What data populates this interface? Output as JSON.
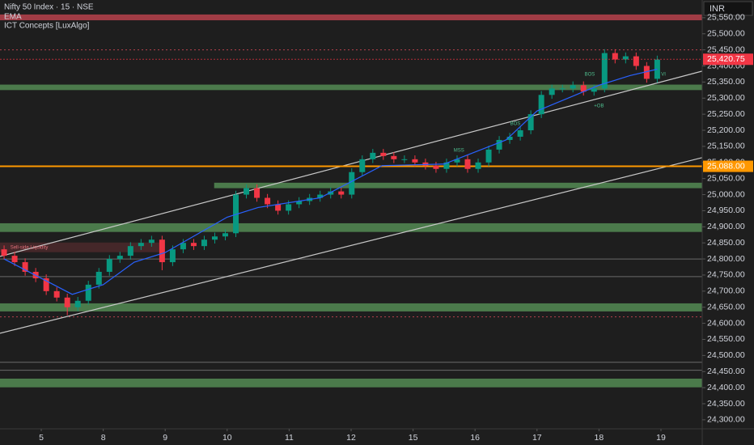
{
  "chart_data": {
    "type": "candlestick",
    "title": "Nifty 50 Index · 15 · NSE",
    "indicators": [
      "EMA",
      "ICT Concepts [LuxAlgo]"
    ],
    "currency": "INR",
    "up_color": "#089981",
    "down_color": "#f23645",
    "x": [
      -0.6,
      -0.43,
      -0.26,
      -0.09,
      0.08,
      0.25,
      0.42,
      0.59,
      0.76,
      0.93,
      1.1,
      1.27,
      1.44,
      1.61,
      1.78,
      1.95,
      2.12,
      2.29,
      2.46,
      2.63,
      2.8,
      2.97,
      3.14,
      3.31,
      3.48,
      3.65,
      3.82,
      3.99,
      4.16,
      4.33,
      4.5,
      4.67,
      4.84,
      5.01,
      5.18,
      5.35,
      5.52,
      5.69,
      5.86,
      6.03,
      6.2,
      6.37,
      6.54,
      6.71,
      6.88,
      7.05,
      7.22,
      7.39,
      7.56,
      7.73,
      7.9,
      8.07,
      8.24,
      8.41,
      8.58,
      8.75,
      8.92,
      9.09,
      9.26,
      9.43,
      9.6,
      9.77,
      9.94
    ],
    "open": [
      24830,
      24810,
      24790,
      24760,
      24740,
      24700,
      24680,
      24650,
      24670,
      24720,
      24760,
      24800,
      24810,
      24840,
      24850,
      24860,
      24790,
      24830,
      24850,
      24840,
      24860,
      24870,
      24880,
      25000,
      25020,
      24990,
      24970,
      24950,
      24970,
      24980,
      24990,
      25000,
      25010,
      25000,
      25070,
      25110,
      25130,
      25120,
      25110,
      25110,
      25100,
      25090,
      25080,
      25100,
      25110,
      25080,
      25100,
      25140,
      25170,
      25180,
      25200,
      25250,
      25310,
      25330,
      25330,
      25340,
      25320,
      25330,
      25440,
      25420,
      25430,
      25400,
      25360
    ],
    "high": [
      24842,
      24822,
      24802,
      24772,
      24752,
      24712,
      24692,
      24682,
      24732,
      24772,
      24812,
      24822,
      24852,
      24862,
      24872,
      24872,
      24842,
      24862,
      24862,
      24872,
      24882,
      24892,
      25012,
      25032,
      25032,
      25002,
      24982,
      24982,
      24992,
      25002,
      25012,
      25022,
      25022,
      25082,
      25122,
      25142,
      25142,
      25132,
      25122,
      25122,
      25112,
      25102,
      25112,
      25122,
      25122,
      25112,
      25152,
      25182,
      25192,
      25212,
      25262,
      25322,
      25342,
      25342,
      25352,
      25352,
      25342,
      25452,
      25452,
      25442,
      25442,
      25412,
      25432
    ],
    "low": [
      24798,
      24778,
      24748,
      24728,
      24688,
      24668,
      24625,
      24638,
      24658,
      24708,
      24748,
      24788,
      24798,
      24828,
      24838,
      24765,
      24778,
      24818,
      24828,
      24828,
      24848,
      24858,
      24868,
      24988,
      24978,
      24958,
      24938,
      24938,
      24958,
      24968,
      24978,
      24988,
      24988,
      24988,
      25058,
      25098,
      25108,
      25098,
      25098,
      25088,
      25078,
      25068,
      25068,
      25088,
      25068,
      25068,
      25088,
      25128,
      25158,
      25168,
      25188,
      25238,
      25298,
      25318,
      25318,
      25308,
      25308,
      25318,
      25408,
      25408,
      25388,
      25348,
      25348
    ],
    "close": [
      24810,
      24790,
      24760,
      24740,
      24700,
      24680,
      24650,
      24670,
      24720,
      24760,
      24800,
      24810,
      24840,
      24850,
      24860,
      24790,
      24830,
      24850,
      24840,
      24860,
      24870,
      24880,
      25000,
      25020,
      24990,
      24970,
      24950,
      24970,
      24980,
      24990,
      25000,
      25010,
      25000,
      25070,
      25110,
      25130,
      25120,
      25110,
      25110,
      25100,
      25090,
      25080,
      25100,
      25110,
      25080,
      25100,
      25140,
      25170,
      25180,
      25200,
      25250,
      25310,
      25330,
      25330,
      25340,
      25320,
      25330,
      25440,
      25420,
      25430,
      25400,
      25360,
      25420
    ],
    "ema": {
      "color": "#2962ff",
      "x": [
        -0.6,
        0.5,
        1.0,
        1.5,
        2.0,
        3.0,
        3.5,
        4.5,
        5.5,
        6.5,
        7.5,
        8.0,
        8.5,
        9.0,
        9.5,
        9.94
      ],
      "values": [
        24800,
        24690,
        24720,
        24790,
        24820,
        24930,
        24960,
        24990,
        25090,
        25095,
        25170,
        25260,
        25300,
        25340,
        25370,
        25390
      ]
    },
    "xlim": [
      -0.666,
      10.666
    ],
    "ylim": [
      24272,
      25605
    ],
    "xticks": [
      {
        "value": 0,
        "label": "5"
      },
      {
        "value": 1,
        "label": "8"
      },
      {
        "value": 2,
        "label": "9"
      },
      {
        "value": 3,
        "label": "10"
      },
      {
        "value": 4,
        "label": "11"
      },
      {
        "value": 5,
        "label": "12"
      },
      {
        "value": 6,
        "label": "15"
      },
      {
        "value": 7,
        "label": "16"
      },
      {
        "value": 8,
        "label": "17"
      },
      {
        "value": 9,
        "label": "18"
      },
      {
        "value": 10,
        "label": "19"
      }
    ],
    "yticks": [
      {
        "value": 24300,
        "label": "24,300.00"
      },
      {
        "value": 24350,
        "label": "24,350.00"
      },
      {
        "value": 24400,
        "label": "24,400.00"
      },
      {
        "value": 24450,
        "label": "24,450.00"
      },
      {
        "value": 24500,
        "label": "24,500.00"
      },
      {
        "value": 24550,
        "label": "24,550.00"
      },
      {
        "value": 24600,
        "label": "24,600.00"
      },
      {
        "value": 24650,
        "label": "24,650.00"
      },
      {
        "value": 24700,
        "label": "24,700.00"
      },
      {
        "value": 24750,
        "label": "24,750.00"
      },
      {
        "value": 24800,
        "label": "24,800.00"
      },
      {
        "value": 24850,
        "label": "24,850.00"
      },
      {
        "value": 24900,
        "label": "24,900.00"
      },
      {
        "value": 24950,
        "label": "24,950.00"
      },
      {
        "value": 25000,
        "label": "25,000.00"
      },
      {
        "value": 25050,
        "label": "25,050.00"
      },
      {
        "value": 25100,
        "label": "25,100.00"
      },
      {
        "value": 25150,
        "label": "25,150.00"
      },
      {
        "value": 25200,
        "label": "25,200.00"
      },
      {
        "value": 25250,
        "label": "25,250.00"
      },
      {
        "value": 25300,
        "label": "25,300.00"
      },
      {
        "value": 25350,
        "label": "25,350.00"
      },
      {
        "value": 25400,
        "label": "25,400.00"
      },
      {
        "value": 25450,
        "label": "25,450.00"
      },
      {
        "value": 25500,
        "label": "25,500.00"
      },
      {
        "value": 25550,
        "label": "25,550.00"
      }
    ],
    "green_zones": [
      {
        "low": 25325,
        "high": 25342
      },
      {
        "low": 25020,
        "high": 25037,
        "from": 2.79
      },
      {
        "low": 24884,
        "high": 24911
      },
      {
        "low": 24637,
        "high": 24662
      },
      {
        "low": 24401,
        "high": 24428
      }
    ],
    "red_zone": {
      "low": 25542,
      "high": 25560
    },
    "liquidity_zone": {
      "low": 24821,
      "high": 24851,
      "to": 1.95
    },
    "gray_levels": [
      24800,
      24745,
      24479,
      24454
    ],
    "dotted_levels": [
      25450,
      24620
    ],
    "trendlines": [
      {
        "x": [
          -0.666,
          10.666
        ],
        "y": [
          24808,
          25384
        ]
      },
      {
        "x": [
          -0.666,
          10.666
        ],
        "y": [
          24569,
          25115
        ]
      }
    ],
    "orange_level": {
      "value": 25088,
      "label": "25,088.00",
      "color": "#ff9800"
    },
    "last_price": {
      "value": 25420.75,
      "label": "25,420.75",
      "color": "#f23645"
    },
    "annotations": [
      {
        "text": "Sell-side Liquidity",
        "x": -0.5,
        "y": 24836
      },
      {
        "text": "BOS",
        "x": 7.65,
        "y": 25221
      },
      {
        "text": "MSS",
        "x": 6.74,
        "y": 25137
      },
      {
        "text": "BOS",
        "x": 8.85,
        "y": 25374
      },
      {
        "text": "+OB",
        "x": 9.0,
        "y": 25276
      },
      {
        "text": "VI",
        "x": 10.04,
        "y": 25374
      }
    ]
  }
}
